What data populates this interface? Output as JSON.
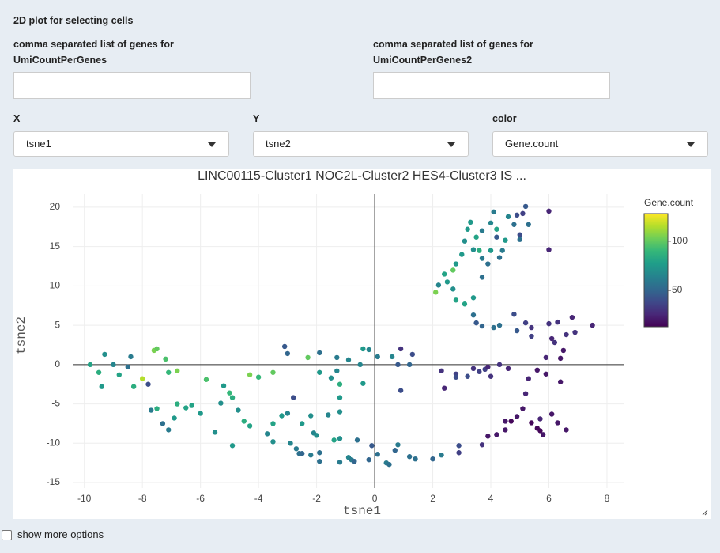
{
  "form": {
    "title": "2D plot for selecting cells",
    "gene_inputs": [
      {
        "label": "comma separated list of genes for UmiCountPerGenes"
      },
      {
        "label": "comma separated list of genes for UmiCountPerGenes2"
      }
    ],
    "selects": [
      {
        "label": "X",
        "value": "tsne1"
      },
      {
        "label": "Y",
        "value": "tsne2"
      },
      {
        "label": "color",
        "value": "Gene.count"
      }
    ],
    "checkbox": {
      "label": "show more options"
    }
  },
  "chart_data": {
    "type": "scatter",
    "title": "LINC00115-Cluster1 NOC2L-Cluster2 HES4-Cluster3 IS ...",
    "xlabel": "tsne1",
    "ylabel": "tsne2",
    "colorbar_title": "Gene.count",
    "colorscale": "viridis",
    "xlim": [
      -10.4,
      8.6
    ],
    "ylim": [
      -15.7,
      21.7
    ],
    "xticks": [
      -10,
      -8,
      -6,
      -4,
      -2,
      0,
      2,
      4,
      6,
      8
    ],
    "yticks": [
      -15,
      -10,
      -5,
      0,
      5,
      10,
      15,
      20
    ],
    "color_lim": [
      13,
      128
    ],
    "color_ticks": [
      50,
      100
    ],
    "grid": true,
    "zeroline": true,
    "x": [
      -9.8,
      -9.5,
      -9.3,
      -9.4,
      -9,
      -8.8,
      -8.5,
      -8.4,
      -8.3,
      -8,
      -7.8,
      -7.6,
      -7.5,
      -7.2,
      -7.1,
      -6.8,
      -7.7,
      -7.5,
      -7.3,
      -7.1,
      -6.9,
      -6.8,
      -6.5,
      -6.3,
      -6,
      -5.8,
      -5.5,
      -5.3,
      -5.2,
      -5,
      -4.9,
      -4.9,
      -4.7,
      -4.5,
      -4.3,
      -4.3,
      -4,
      -3.7,
      -3.5,
      -3.5,
      -3.5,
      -3.2,
      -3,
      -3.1,
      -3,
      -2.9,
      -2.8,
      -2.7,
      -2.6,
      -2.5,
      -2.5,
      -2.3,
      -2.2,
      -2.1,
      -2,
      -2.2,
      -1.9,
      -1.9,
      -1.9,
      -1.9,
      -1.6,
      -1.5,
      -1.4,
      -1.3,
      -1.3,
      -1.2,
      -1.2,
      -1.2,
      -1.2,
      -1.2,
      -0.9,
      -0.9,
      -0.8,
      -0.7,
      -0.6,
      -0.5,
      -0.4,
      -0.4,
      -0.2,
      -0.2,
      -0.1,
      0.1,
      0.1,
      0.4,
      0.5,
      0.6,
      0.7,
      0.8,
      0.8,
      0.9,
      0.9,
      1.2,
      1.4,
      1.2,
      1.3,
      2,
      2.3,
      2.3,
      2.4,
      2.8,
      2.8,
      2.9,
      2.9,
      3.2,
      3.4,
      3.6,
      3.8,
      3.9,
      4,
      4.3,
      4.6,
      5.3,
      5.6,
      5.9,
      6.4,
      3.7,
      3.9,
      4.2,
      4.5,
      4.5,
      4.7,
      4.9,
      5.1,
      5.4,
      5.6,
      5.7,
      5.8,
      5.7,
      6.1,
      6.3,
      6.6,
      5.2,
      3.5,
      3.7,
      3.4,
      3.4,
      3.1,
      2.8,
      2.7,
      2.5,
      2.4,
      2.2,
      2.1,
      2.7,
      2.8,
      3,
      3.1,
      3.2,
      3.3,
      3.5,
      3.4,
      3.6,
      3.7,
      4,
      4,
      4.1,
      4.2,
      4.2,
      4.4,
      4.3,
      3.7,
      3.9,
      3.7,
      4.5,
      4.6,
      4.8,
      4.9,
      5,
      5.1,
      5.2,
      5.3,
      6,
      5,
      6,
      4.1,
      4.3,
      4.8,
      4.9,
      5.2,
      5.4,
      5.4,
      6,
      6.2,
      6.1,
      6.3,
      6.6,
      6.8,
      6.9,
      7.5,
      5.9,
      6.5,
      6.4
    ],
    "y": [
      0,
      -1,
      1.3,
      -2.8,
      0,
      -1.3,
      -0.3,
      1,
      -2.8,
      -1.8,
      -2.5,
      1.8,
      2,
      0.7,
      -1,
      -0.8,
      -5.8,
      -5.6,
      -7.5,
      -8.3,
      -6.8,
      -5,
      -5.5,
      -5.2,
      -6.2,
      -1.9,
      -8.6,
      -4.9,
      -2.7,
      -3.6,
      -10.3,
      -4.2,
      -5.8,
      -7.2,
      -7.8,
      -1.3,
      -1.6,
      -8.8,
      -9.8,
      -7.5,
      -1,
      -6.5,
      -6.2,
      2.3,
      1.4,
      -10,
      -4.2,
      -10.7,
      -11.3,
      -11.3,
      -7.5,
      0.9,
      -6.5,
      -8.7,
      -9,
      -11.5,
      -12.3,
      -11.2,
      -1,
      1.5,
      -6.4,
      -1.7,
      -9.6,
      -0.8,
      0.9,
      -2.5,
      -4.2,
      -6,
      -9.4,
      -12.4,
      0.6,
      -11.8,
      -12.1,
      -12.3,
      -9.6,
      0,
      2,
      -2.4,
      1.9,
      -12.1,
      -10.3,
      1,
      -11.4,
      -12.5,
      -12.7,
      1,
      -10.9,
      -10.2,
      0,
      -3.3,
      2,
      -11.7,
      -12,
      0,
      1.3,
      -12,
      -11.5,
      -0.8,
      -3,
      -1.2,
      -1.6,
      -10.3,
      -11.2,
      -1.5,
      -0.5,
      -0.9,
      -0.6,
      -0.3,
      -1.5,
      0,
      -0.5,
      -1.8,
      -0.7,
      -1.2,
      -2.2,
      -10.2,
      -9.1,
      -8.9,
      -7.2,
      -8.3,
      -7.2,
      -6.6,
      -5.6,
      -7.4,
      -8.1,
      -8.4,
      -8.9,
      -6.9,
      -6.3,
      -7.4,
      -8.3,
      -3.7,
      5.3,
      4.9,
      8.5,
      6.3,
      7.7,
      8.2,
      9.6,
      10.5,
      11.5,
      10.1,
      9.2,
      12,
      12.8,
      14,
      15.7,
      17.2,
      18.1,
      16.2,
      14.6,
      14.5,
      17,
      14.5,
      18,
      19.4,
      17.2,
      16.2,
      14.5,
      13.6,
      13.5,
      12.8,
      11.1,
      15.8,
      18.8,
      17.8,
      19,
      15.9,
      19.2,
      20.1,
      17.8,
      19.5,
      16.5,
      14.6,
      4.7,
      5,
      6.4,
      4.3,
      5.3,
      3.6,
      4.7,
      5.2,
      2.8,
      3.3,
      5.4,
      3.8,
      6,
      4.1,
      5,
      0.9,
      1.8,
      0.8
    ],
    "color_values": [
      80,
      85,
      70,
      75,
      65,
      80,
      55,
      60,
      85,
      115,
      40,
      105,
      100,
      95,
      90,
      105,
      60,
      85,
      55,
      60,
      75,
      85,
      80,
      80,
      75,
      95,
      70,
      70,
      75,
      90,
      75,
      85,
      70,
      85,
      80,
      105,
      90,
      65,
      70,
      80,
      100,
      75,
      65,
      45,
      50,
      65,
      40,
      60,
      55,
      50,
      75,
      100,
      70,
      65,
      70,
      60,
      55,
      55,
      75,
      55,
      65,
      70,
      80,
      65,
      60,
      85,
      75,
      70,
      70,
      60,
      65,
      65,
      60,
      50,
      55,
      65,
      75,
      75,
      65,
      50,
      45,
      60,
      55,
      60,
      55,
      65,
      50,
      60,
      45,
      40,
      30,
      55,
      55,
      50,
      40,
      50,
      60,
      30,
      25,
      35,
      40,
      40,
      35,
      40,
      30,
      35,
      35,
      25,
      30,
      30,
      25,
      25,
      20,
      20,
      20,
      30,
      20,
      20,
      20,
      20,
      15,
      20,
      20,
      15,
      15,
      15,
      20,
      25,
      20,
      20,
      20,
      25,
      45,
      50,
      75,
      55,
      80,
      80,
      70,
      75,
      80,
      65,
      105,
      100,
      75,
      75,
      70,
      75,
      75,
      80,
      70,
      85,
      60,
      75,
      65,
      60,
      80,
      45,
      60,
      55,
      60,
      55,
      55,
      75,
      65,
      55,
      40,
      55,
      35,
      45,
      55,
      25,
      40,
      25,
      55,
      55,
      40,
      45,
      35,
      35,
      30,
      30,
      30,
      25,
      30,
      30,
      25,
      30,
      25,
      25,
      20,
      20
    ]
  }
}
